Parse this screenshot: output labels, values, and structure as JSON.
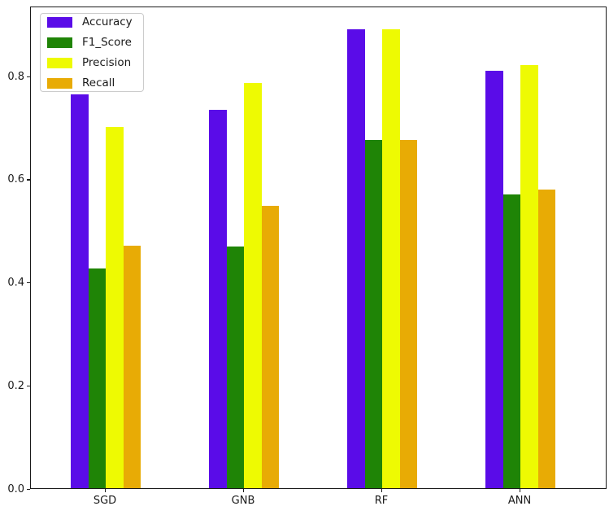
{
  "chart_data": {
    "type": "bar",
    "categories": [
      "SGD",
      "GNB",
      "RF",
      "ANN"
    ],
    "series": [
      {
        "name": "Accuracy",
        "color": "#5a0ce8",
        "values": [
          0.766,
          0.737,
          0.893,
          0.813
        ]
      },
      {
        "name": "F1_Score",
        "color": "#1f8406",
        "values": [
          0.427,
          0.471,
          0.678,
          0.571
        ]
      },
      {
        "name": "Precision",
        "color": "#eefa02",
        "values": [
          0.703,
          0.789,
          0.893,
          0.824
        ]
      },
      {
        "name": "Recall",
        "color": "#e8ab05",
        "values": [
          0.472,
          0.55,
          0.678,
          0.582
        ]
      }
    ],
    "title": "",
    "xlabel": "",
    "ylabel": "",
    "ylim": [
      0,
      0.936
    ],
    "yticks": [
      0.0,
      0.2,
      0.4,
      0.6,
      0.8
    ],
    "ytick_labels": [
      "0.0",
      "0.2",
      "0.4",
      "0.6",
      "0.8"
    ],
    "grid": false,
    "legend_position": "upper left"
  },
  "legend": {
    "items": [
      {
        "label": "Accuracy"
      },
      {
        "label": "F1_Score"
      },
      {
        "label": "Precision"
      },
      {
        "label": "Recall"
      }
    ]
  },
  "style": {
    "spine_color": "#1a1a1a",
    "background": "#ffffff",
    "legend_border": "#cccccc"
  }
}
